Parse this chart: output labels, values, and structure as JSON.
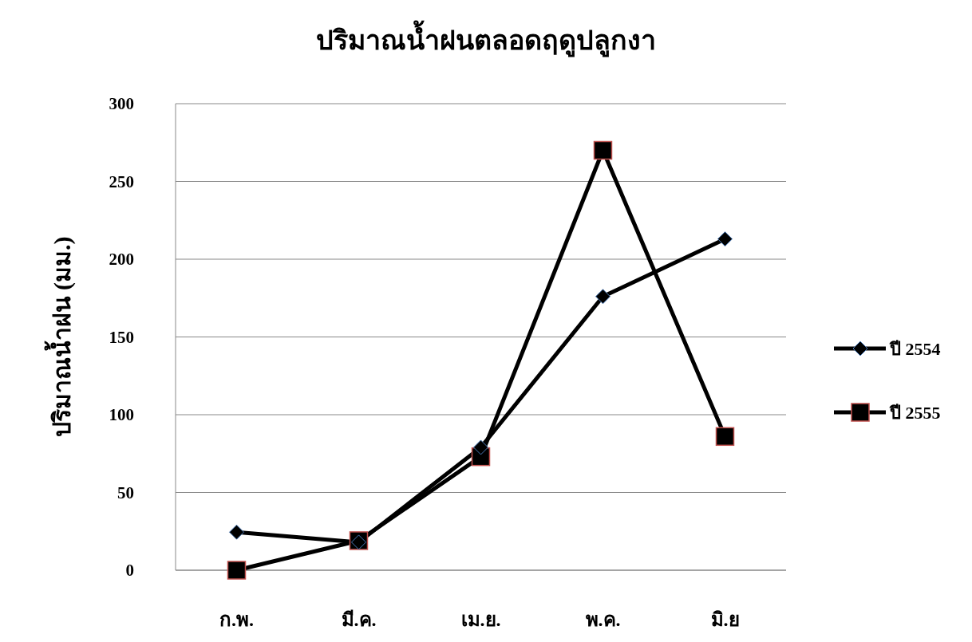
{
  "chart_data": {
    "type": "line",
    "title": "ปริมาณน้ำฝนตลอดฤดูปลูกงา",
    "ylabel": "ปริมาณน้ำฝน (มม.)",
    "categories": [
      "ก.พ.",
      "มี.ค.",
      "เม.ย.",
      "พ.ค.",
      "มิ.ย"
    ],
    "series": [
      {
        "name": "ปี 2554",
        "color": "#000000",
        "marker": "diamond",
        "values": [
          24.5,
          18,
          79,
          176,
          213
        ]
      },
      {
        "name": "ปี 2555",
        "color": "#000000",
        "marker": "square",
        "values": [
          0,
          19,
          73,
          270,
          86
        ]
      }
    ],
    "ylim": [
      0,
      300
    ],
    "yticks": [
      0,
      50,
      100,
      150,
      200,
      250,
      300
    ],
    "grid": "y",
    "legend": "right",
    "line_style": "solid"
  }
}
